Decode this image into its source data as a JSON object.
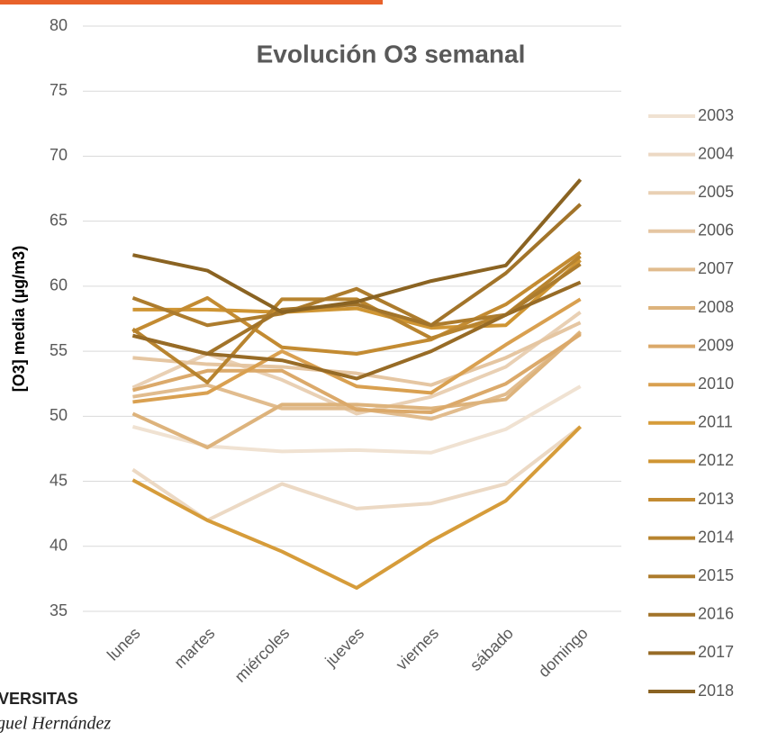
{
  "chart_data": {
    "type": "line",
    "title": "Evolución O3 semanal",
    "y_label": "[O3] media (µg/m3)",
    "categories": [
      "lunes",
      "martes",
      "miércoles",
      "jueves",
      "viernes",
      "sábado",
      "domingo"
    ],
    "ylim": [
      35,
      80
    ],
    "yticks": [
      35,
      40,
      45,
      50,
      55,
      60,
      65,
      70,
      75,
      80
    ],
    "grid": true,
    "legend": "right",
    "series": [
      {
        "name": "2003",
        "color": "#f0e2d2",
        "values": [
          49.2,
          47.7,
          47.3,
          47.4,
          47.2,
          49.0,
          52.3
        ]
      },
      {
        "name": "2004",
        "color": "#ecd9c4",
        "values": [
          45.9,
          42.0,
          44.8,
          42.9,
          43.3,
          44.8,
          49.2
        ]
      },
      {
        "name": "2005",
        "color": "#e9d0b4",
        "values": [
          52.2,
          54.8,
          52.8,
          50.2,
          51.5,
          53.8,
          58.0
        ]
      },
      {
        "name": "2006",
        "color": "#e5c6a2",
        "values": [
          54.5,
          54.0,
          53.8,
          53.3,
          52.4,
          54.5,
          57.2
        ]
      },
      {
        "name": "2007",
        "color": "#e1bc8e",
        "values": [
          51.5,
          52.4,
          50.6,
          50.6,
          49.8,
          51.7,
          56.4
        ]
      },
      {
        "name": "2008",
        "color": "#ddb37c",
        "values": [
          50.2,
          47.6,
          50.9,
          50.9,
          50.6,
          51.3,
          56.5
        ]
      },
      {
        "name": "2009",
        "color": "#dba96a",
        "values": [
          52.0,
          53.5,
          53.5,
          50.5,
          50.3,
          52.5,
          56.3
        ]
      },
      {
        "name": "2010",
        "color": "#d9a050",
        "values": [
          51.1,
          51.8,
          55.0,
          52.3,
          51.8,
          55.5,
          59.0
        ]
      },
      {
        "name": "2011",
        "color": "#d69c3a",
        "values": [
          45.1,
          42.0,
          39.6,
          36.8,
          40.4,
          43.5,
          49.2
        ]
      },
      {
        "name": "2012",
        "color": "#cf9533",
        "values": [
          58.2,
          58.2,
          58.0,
          58.3,
          56.8,
          57.0,
          62.0
        ]
      },
      {
        "name": "2013",
        "color": "#c38b32",
        "values": [
          56.5,
          59.1,
          55.3,
          54.8,
          55.9,
          58.6,
          62.6
        ]
      },
      {
        "name": "2014",
        "color": "#b8842f",
        "values": [
          56.7,
          52.6,
          59.0,
          59.0,
          56.0,
          57.8,
          62.3
        ]
      },
      {
        "name": "2015",
        "color": "#ad7c2d",
        "values": [
          59.1,
          57.0,
          57.9,
          59.8,
          57.0,
          57.8,
          61.7
        ]
      },
      {
        "name": "2016",
        "color": "#a2742a",
        "values": [
          56.2,
          54.8,
          58.2,
          58.6,
          57.0,
          61.0,
          66.3
        ]
      },
      {
        "name": "2017",
        "color": "#976b26",
        "values": [
          56.2,
          54.8,
          54.3,
          52.9,
          55.0,
          57.8,
          60.3
        ]
      },
      {
        "name": "2018",
        "color": "#8a6322",
        "values": [
          62.4,
          61.2,
          58.0,
          58.8,
          60.4,
          61.6,
          68.2
        ]
      }
    ]
  },
  "logo": {
    "line1": "VERSITAS",
    "line2": "guel Hernández"
  }
}
